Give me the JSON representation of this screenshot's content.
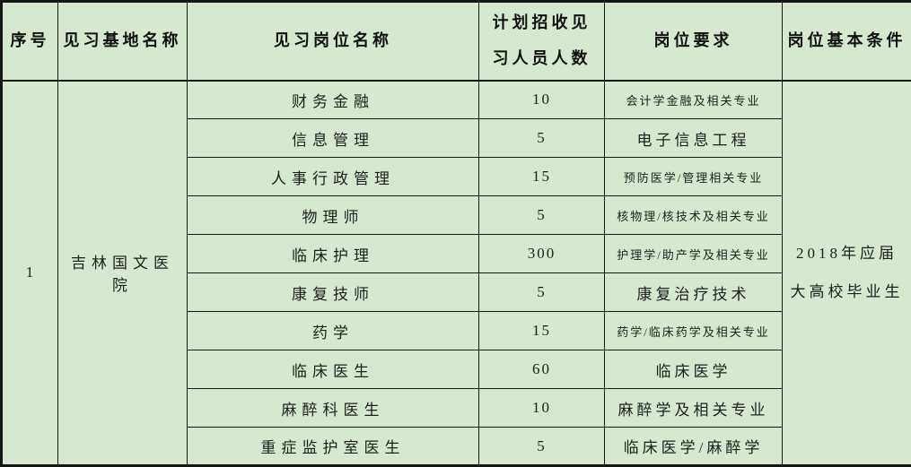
{
  "colors": {
    "cell_bg": "#d6e9d0",
    "border": "#161616",
    "header_text": "#101010",
    "body_text": "#1e1e1e"
  },
  "table": {
    "headers": {
      "serial": "序号",
      "base_name": "见习基地名称",
      "position": "见习岗位名称",
      "count": "计划招收见习人员人数",
      "requirement": "岗位要求",
      "condition": "岗位基本条件"
    },
    "group": {
      "serial": "1",
      "base_name": "吉林国文医院",
      "basic_condition": "2018年应届大高校毕业生"
    },
    "rows": [
      {
        "position": "财务金融",
        "count": "10",
        "requirement": "会计学金融及相关专业"
      },
      {
        "position": "信息管理",
        "count": "5",
        "requirement": "电子信息工程"
      },
      {
        "position": "人事行政管理",
        "count": "15",
        "requirement": "预防医学/管理相关专业"
      },
      {
        "position": "物理师",
        "count": "5",
        "requirement": "核物理/核技术及相关专业"
      },
      {
        "position": "临床护理",
        "count": "300",
        "requirement": "护理学/助产学及相关专业"
      },
      {
        "position": "康复技师",
        "count": "5",
        "requirement": "康复治疗技术"
      },
      {
        "position": "药学",
        "count": "15",
        "requirement": "药学/临床药学及相关专业"
      },
      {
        "position": "临床医生",
        "count": "60",
        "requirement": "临床医学"
      },
      {
        "position": "麻醉科医生",
        "count": "10",
        "requirement": "麻醉学及相关专业"
      },
      {
        "position": "重症监护室医生",
        "count": "5",
        "requirement": "临床医学/麻醉学"
      }
    ]
  }
}
